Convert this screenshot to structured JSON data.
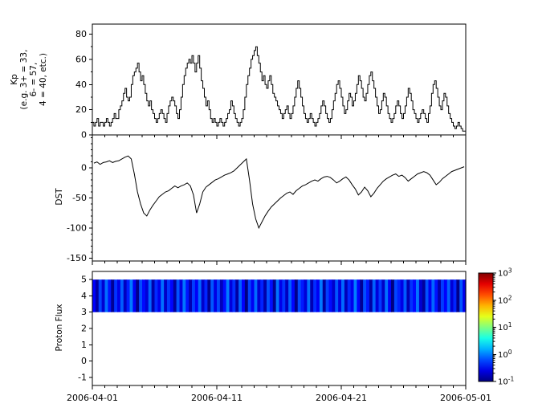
{
  "figure": {
    "background": "#ffffff",
    "line_color": "#000000",
    "x_axis": {
      "tick_labels": [
        "2006-04-01",
        "2006-04-11",
        "2006-04-21",
        "2006-05-01"
      ],
      "range_days": [
        0,
        30
      ],
      "minor_tick_days": 1,
      "major_tick_days": 10
    },
    "panels": [
      {
        "id": "kp",
        "ylabel_lines": [
          "Kp",
          "(e.g. 3+ = 33,",
          "6- = 57,",
          "4 = 40, etc.)"
        ],
        "yticks": [
          0,
          20,
          40,
          60,
          80
        ],
        "ylim": [
          0,
          88
        ],
        "minor_step": 10
      },
      {
        "id": "dst",
        "ylabel_lines": [
          "DST"
        ],
        "yticks": [
          0,
          -50,
          -100,
          -150
        ],
        "ylim": [
          -155,
          55
        ],
        "minor_step": 10
      },
      {
        "id": "proton",
        "ylabel_lines": [
          "Proton Flux"
        ],
        "yticks": [
          5,
          4,
          3,
          2,
          1,
          0,
          -1
        ],
        "ylim": [
          -1.5,
          5.5
        ],
        "minor_step": 1
      }
    ],
    "colorbar": {
      "scale": "log",
      "range": [
        0.1,
        1000
      ],
      "tick_exponents": [
        3,
        2,
        1,
        0,
        -1
      ],
      "colormap": "jet"
    }
  },
  "chart_data": [
    {
      "type": "line",
      "subtype": "step",
      "name": "Kp index",
      "ylabel": "Kp (e.g. 3+ = 33, 6- = 57, 4 = 40, etc.)",
      "x_start": "2006-04-01",
      "x_end": "2006-05-01",
      "cadence_hours": 3,
      "ylim": [
        0,
        88
      ],
      "yticks": [
        0,
        20,
        40,
        60,
        80
      ],
      "values": [
        10,
        7,
        10,
        13,
        7,
        10,
        10,
        7,
        10,
        13,
        10,
        7,
        10,
        13,
        17,
        13,
        13,
        20,
        23,
        27,
        33,
        37,
        30,
        27,
        30,
        40,
        47,
        50,
        53,
        57,
        50,
        43,
        47,
        40,
        33,
        27,
        23,
        27,
        20,
        17,
        13,
        10,
        13,
        17,
        20,
        17,
        13,
        10,
        17,
        23,
        27,
        30,
        27,
        23,
        17,
        13,
        20,
        30,
        40,
        47,
        53,
        57,
        60,
        57,
        63,
        57,
        50,
        57,
        63,
        53,
        43,
        37,
        30,
        23,
        27,
        20,
        13,
        10,
        13,
        10,
        7,
        10,
        13,
        10,
        7,
        10,
        13,
        17,
        20,
        27,
        23,
        17,
        13,
        10,
        7,
        10,
        13,
        20,
        30,
        40,
        47,
        53,
        60,
        63,
        67,
        70,
        63,
        57,
        50,
        43,
        47,
        40,
        37,
        43,
        47,
        40,
        33,
        30,
        27,
        23,
        20,
        17,
        13,
        17,
        20,
        23,
        17,
        13,
        17,
        23,
        30,
        37,
        43,
        37,
        30,
        23,
        17,
        13,
        10,
        13,
        17,
        13,
        10,
        7,
        10,
        13,
        17,
        23,
        27,
        23,
        17,
        13,
        10,
        13,
        20,
        27,
        33,
        40,
        43,
        37,
        30,
        23,
        17,
        20,
        27,
        33,
        30,
        23,
        27,
        33,
        40,
        47,
        43,
        37,
        30,
        27,
        33,
        40,
        47,
        50,
        43,
        37,
        30,
        23,
        17,
        20,
        27,
        33,
        30,
        23,
        17,
        13,
        10,
        13,
        17,
        23,
        27,
        23,
        17,
        13,
        17,
        23,
        30,
        37,
        33,
        27,
        20,
        17,
        13,
        10,
        13,
        17,
        20,
        17,
        13,
        10,
        17,
        23,
        33,
        40,
        43,
        37,
        30,
        23,
        20,
        27,
        33,
        30,
        23,
        17,
        13,
        10,
        7,
        5,
        7,
        10,
        7,
        5,
        3,
        3
      ]
    },
    {
      "type": "line",
      "name": "DST",
      "ylabel": "DST",
      "x_start": "2006-04-01",
      "x_end": "2006-05-01",
      "cadence_hours": 6,
      "ylim": [
        -155,
        55
      ],
      "yticks": [
        0,
        -50,
        -100,
        -150
      ],
      "values": [
        8,
        10,
        6,
        9,
        10,
        12,
        9,
        11,
        12,
        15,
        18,
        20,
        15,
        -10,
        -40,
        -60,
        -75,
        -80,
        -70,
        -62,
        -55,
        -48,
        -44,
        -40,
        -38,
        -34,
        -30,
        -33,
        -30,
        -28,
        -25,
        -30,
        -45,
        -75,
        -60,
        -40,
        -32,
        -28,
        -24,
        -20,
        -18,
        -15,
        -12,
        -10,
        -8,
        -5,
        0,
        5,
        10,
        15,
        -20,
        -60,
        -85,
        -100,
        -90,
        -80,
        -72,
        -65,
        -60,
        -55,
        -50,
        -46,
        -42,
        -40,
        -44,
        -38,
        -34,
        -30,
        -28,
        -25,
        -22,
        -20,
        -22,
        -18,
        -15,
        -14,
        -16,
        -20,
        -25,
        -22,
        -18,
        -15,
        -20,
        -28,
        -35,
        -45,
        -40,
        -32,
        -38,
        -48,
        -42,
        -34,
        -28,
        -22,
        -18,
        -15,
        -12,
        -10,
        -14,
        -12,
        -16,
        -22,
        -18,
        -14,
        -10,
        -8,
        -6,
        -8,
        -12,
        -20,
        -28,
        -24,
        -18,
        -14,
        -10,
        -6,
        -4,
        -2,
        0,
        2
      ]
    },
    {
      "type": "heatmap",
      "name": "Proton Flux",
      "ylabel": "Proton Flux",
      "x_start": "2006-04-01",
      "x_end": "2006-05-01",
      "cadence_hours": 6,
      "band_y": [
        3,
        5
      ],
      "ylim": [
        -1.5,
        5.5
      ],
      "zscale": "log",
      "zlim": [
        0.1,
        1000
      ],
      "colormap": "jet",
      "values": [
        0.32,
        0.14,
        0.58,
        0.21,
        0.85,
        0.37,
        0.12,
        0.49,
        0.26,
        0.73,
        0.18,
        0.41,
        0.95,
        0.29,
        0.11,
        0.63,
        0.34,
        0.22,
        0.78,
        0.15,
        0.46,
        0.27,
        0.88,
        0.19,
        0.52,
        0.33,
        0.13,
        0.67,
        0.24,
        0.92,
        0.38,
        0.16,
        0.55,
        0.3,
        0.81,
        0.2,
        0.44,
        0.12,
        0.7,
        0.25,
        0.6,
        0.17,
        0.35,
        0.96,
        0.23,
        0.48,
        0.14,
        0.75,
        0.31,
        0.1,
        0.57,
        0.28,
        0.83,
        0.21,
        0.43,
        0.15,
        0.66,
        0.36,
        0.12,
        0.9,
        0.26,
        0.5,
        0.18,
        0.74,
        0.33,
        0.11,
        0.61,
        0.4,
        0.22,
        0.86,
        0.16,
        0.47,
        0.29,
        0.94,
        0.13,
        0.56,
        0.35,
        0.2,
        0.69,
        0.24,
        0.82,
        0.17,
        0.45,
        0.27,
        0.99,
        0.32,
        0.12,
        0.64,
        0.39,
        0.14,
        0.76,
        0.23,
        0.53,
        0.19,
        0.87,
        0.3,
        0.1,
        0.59,
        0.42,
        0.25,
        0.71,
        0.16,
        0.49,
        0.34,
        0.91,
        0.21,
        0.13,
        0.65,
        0.28,
        0.8,
        0.37,
        0.15,
        0.54,
        0.31,
        0.77,
        0.22,
        0.44,
        0.11,
        0.68,
        0.26
      ]
    }
  ]
}
